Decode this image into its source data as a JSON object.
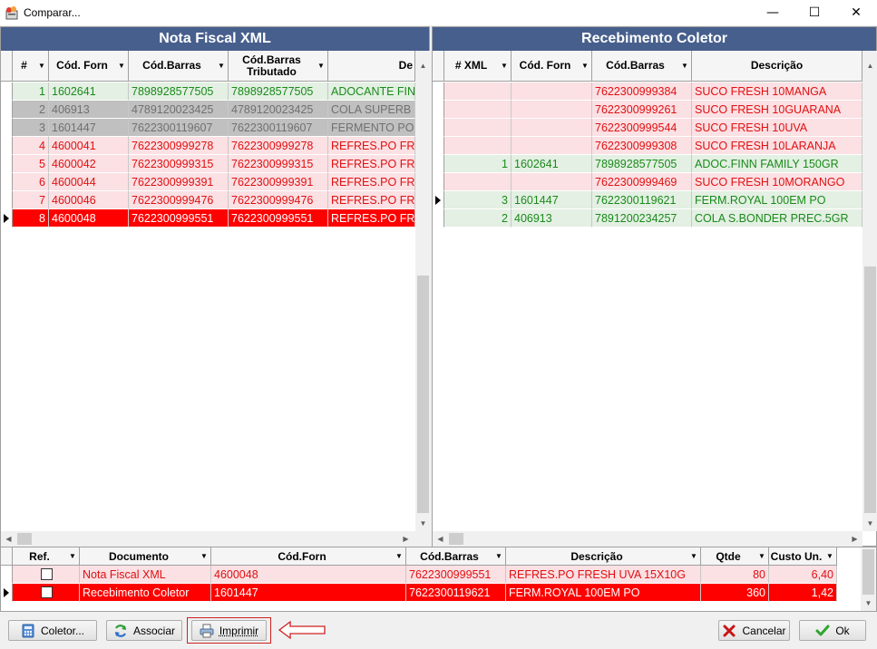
{
  "window": {
    "title": "Comparar...",
    "minimize": "—",
    "maximize": "☐",
    "close": "✕"
  },
  "left": {
    "title": "Nota Fiscal XML",
    "columns": [
      "#",
      "Cód. Forn",
      "Cód.Barras",
      "Cód.Barras Tributado",
      "De"
    ],
    "rows": [
      [
        "1",
        "1602641",
        "7898928577505",
        "7898928577505",
        "ADOCANTE FIN"
      ],
      [
        "2",
        "406913",
        "4789120023425",
        "4789120023425",
        "COLA SUPERB"
      ],
      [
        "3",
        "1601447",
        "7622300119607",
        "7622300119607",
        "FERMENTO PO"
      ],
      [
        "4",
        "4600041",
        "7622300999278",
        "7622300999278",
        "REFRES.PO FR"
      ],
      [
        "5",
        "4600042",
        "7622300999315",
        "7622300999315",
        "REFRES.PO FR"
      ],
      [
        "6",
        "4600044",
        "7622300999391",
        "7622300999391",
        "REFRES.PO FR"
      ],
      [
        "7",
        "4600046",
        "7622300999476",
        "7622300999476",
        "REFRES.PO FR"
      ],
      [
        "8",
        "4600048",
        "7622300999551",
        "7622300999551",
        "REFRES.PO FR"
      ]
    ]
  },
  "right": {
    "title": "Recebimento Coletor",
    "columns": [
      "# XML",
      "Cód. Forn",
      "Cód.Barras",
      "Descrição"
    ],
    "rows": [
      [
        "",
        "",
        "7622300999384",
        "SUCO FRESH 10MANGA"
      ],
      [
        "",
        "",
        "7622300999261",
        "SUCO FRESH 10GUARANA"
      ],
      [
        "",
        "",
        "7622300999544",
        "SUCO FRESH 10UVA"
      ],
      [
        "",
        "",
        "7622300999308",
        "SUCO FRESH 10LARANJA"
      ],
      [
        "1",
        "1602641",
        "7898928577505",
        "ADOC.FINN FAMILY 150GR"
      ],
      [
        "",
        "",
        "7622300999469",
        "SUCO FRESH 10MORANGO"
      ],
      [
        "3",
        "1601447",
        "7622300119621",
        "FERM.ROYAL 100EM PO"
      ],
      [
        "2",
        "406913",
        "7891200234257",
        "COLA S.BONDER PREC.5GR"
      ]
    ]
  },
  "bottom": {
    "columns": [
      "Ref.",
      "Documento",
      "Cód.Forn",
      "Cód.Barras",
      "Descrição",
      "Qtde",
      "Custo Un."
    ],
    "rows": [
      [
        "",
        "Nota Fiscal XML",
        "4600048",
        "7622300999551",
        "REFRES.PO FRESH UVA 15X10G",
        "80",
        "6,40"
      ],
      [
        "",
        "Recebimento Coletor",
        "1601447",
        "7622300119621",
        "FERM.ROYAL 100EM PO",
        "360",
        "1,42"
      ]
    ]
  },
  "buttons": {
    "coletor": "Coletor...",
    "associar": "Associar",
    "imprimir": "Imprimir",
    "cancelar": "Cancelar",
    "ok": "Ok"
  },
  "colors": {
    "header_bg": "#475f8c",
    "green_row": "#e3f0e3",
    "green_text": "#1a8a1a",
    "gray_row": "#c0c0c0",
    "gray_text": "#707070",
    "pink_row": "#fbe0e4",
    "red_text": "#e01010",
    "selected_row": "#ff0000"
  }
}
